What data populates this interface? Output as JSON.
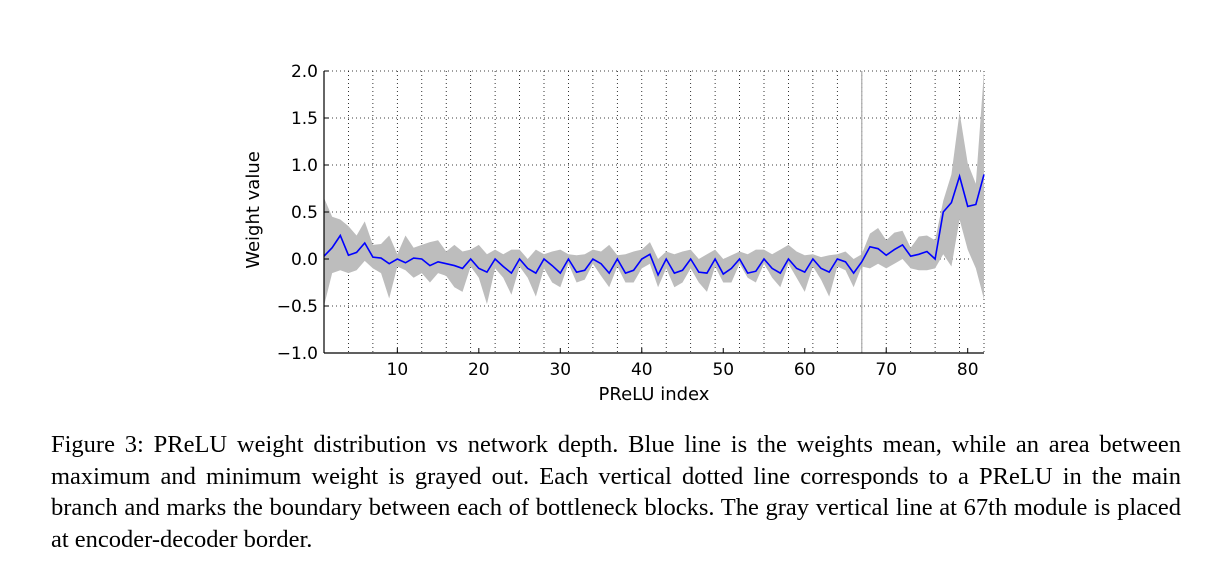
{
  "chart_data": {
    "type": "line",
    "title": "",
    "xlabel": "PReLU index",
    "ylabel": "Weight value",
    "xlim": [
      1,
      82
    ],
    "ylim": [
      -1.0,
      2.0
    ],
    "xticks": [
      10,
      20,
      30,
      40,
      50,
      60,
      70,
      80
    ],
    "yticks": [
      -1.0,
      -0.5,
      0.0,
      0.5,
      1.0,
      1.5,
      2.0
    ],
    "ytick_labels": [
      "−1.0",
      "−0.5",
      "0.0",
      "0.5",
      "1.0",
      "1.5",
      "2.0"
    ],
    "grid": "dotted",
    "block_boundaries": [
      1,
      4,
      7,
      10,
      13,
      16,
      19,
      22,
      25,
      28,
      31,
      34,
      37,
      40,
      43,
      46,
      49,
      52,
      55,
      58,
      61,
      64,
      67,
      70,
      73,
      76,
      79,
      82
    ],
    "encoder_decoder_border": 67,
    "colors": {
      "mean": "#0000ff",
      "range": "#bdbdbd",
      "border": "#aaaaaa"
    },
    "x": [
      1,
      2,
      3,
      4,
      5,
      6,
      7,
      8,
      9,
      10,
      11,
      12,
      13,
      14,
      15,
      16,
      17,
      18,
      19,
      20,
      21,
      22,
      23,
      24,
      25,
      26,
      27,
      28,
      29,
      30,
      31,
      32,
      33,
      34,
      35,
      36,
      37,
      38,
      39,
      40,
      41,
      42,
      43,
      44,
      45,
      46,
      47,
      48,
      49,
      50,
      51,
      52,
      53,
      54,
      55,
      56,
      57,
      58,
      59,
      60,
      61,
      62,
      63,
      64,
      65,
      66,
      67,
      68,
      69,
      70,
      71,
      72,
      73,
      74,
      75,
      76,
      77,
      78,
      79,
      80,
      81,
      82
    ],
    "series": [
      {
        "name": "",
        "role": "mean",
        "values": [
          0.03,
          0.12,
          0.25,
          0.04,
          0.07,
          0.17,
          0.02,
          0.01,
          -0.05,
          0.0,
          -0.04,
          0.01,
          0.0,
          -0.07,
          -0.03,
          -0.05,
          -0.07,
          -0.1,
          0.0,
          -0.1,
          -0.14,
          0.0,
          -0.08,
          -0.15,
          0.0,
          -0.1,
          -0.15,
          0.0,
          -0.07,
          -0.15,
          0.0,
          -0.14,
          -0.12,
          0.0,
          -0.05,
          -0.15,
          0.0,
          -0.15,
          -0.12,
          0.0,
          0.05,
          -0.17,
          0.0,
          -0.15,
          -0.12,
          0.0,
          -0.14,
          -0.15,
          0.0,
          -0.16,
          -0.1,
          0.0,
          -0.15,
          -0.13,
          0.0,
          -0.1,
          -0.15,
          0.0,
          -0.1,
          -0.14,
          0.0,
          -0.1,
          -0.14,
          0.0,
          -0.03,
          -0.15,
          -0.03,
          0.13,
          0.11,
          0.04,
          0.1,
          0.15,
          0.03,
          0.05,
          0.08,
          0.0,
          0.5,
          0.6,
          0.88,
          0.56,
          0.58,
          0.9
        ]
      },
      {
        "name": "",
        "role": "max",
        "values": [
          0.65,
          0.45,
          0.42,
          0.35,
          0.25,
          0.4,
          0.15,
          0.16,
          0.25,
          0.05,
          0.25,
          0.12,
          0.15,
          0.18,
          0.2,
          0.08,
          0.15,
          0.08,
          0.1,
          0.15,
          0.05,
          0.1,
          0.05,
          0.1,
          0.1,
          0.0,
          0.1,
          0.05,
          0.08,
          0.1,
          0.05,
          0.04,
          0.05,
          0.1,
          0.08,
          0.15,
          0.04,
          0.05,
          0.08,
          0.1,
          0.18,
          0.0,
          0.08,
          0.05,
          0.08,
          0.1,
          0.0,
          0.05,
          0.1,
          0.0,
          0.04,
          0.08,
          0.05,
          0.1,
          0.1,
          0.05,
          0.1,
          0.15,
          0.08,
          0.04,
          0.05,
          0.02,
          0.04,
          0.05,
          0.08,
          0.0,
          0.05,
          0.27,
          0.33,
          0.2,
          0.28,
          0.3,
          0.12,
          0.24,
          0.25,
          0.2,
          0.62,
          0.9,
          1.56,
          1.02,
          0.8,
          2.0
        ]
      },
      {
        "name": "",
        "role": "min",
        "values": [
          -0.5,
          -0.15,
          -0.12,
          -0.15,
          -0.12,
          -0.02,
          -0.1,
          -0.15,
          -0.42,
          -0.08,
          -0.12,
          -0.2,
          -0.15,
          -0.25,
          -0.15,
          -0.18,
          -0.3,
          -0.35,
          -0.08,
          -0.2,
          -0.48,
          -0.1,
          -0.2,
          -0.38,
          -0.08,
          -0.2,
          -0.4,
          -0.1,
          -0.25,
          -0.3,
          -0.05,
          -0.25,
          -0.22,
          -0.05,
          -0.18,
          -0.3,
          -0.08,
          -0.25,
          -0.25,
          -0.1,
          -0.05,
          -0.3,
          -0.1,
          -0.3,
          -0.25,
          -0.1,
          -0.25,
          -0.35,
          -0.08,
          -0.25,
          -0.25,
          -0.05,
          -0.2,
          -0.25,
          -0.05,
          -0.2,
          -0.3,
          -0.05,
          -0.2,
          -0.35,
          -0.08,
          -0.22,
          -0.4,
          -0.08,
          -0.12,
          -0.3,
          -0.08,
          -0.1,
          -0.05,
          -0.1,
          -0.05,
          0.0,
          -0.1,
          -0.12,
          -0.12,
          -0.1,
          0.05,
          -0.08,
          0.42,
          0.1,
          -0.1,
          -0.43
        ]
      }
    ]
  },
  "caption": "Figure 3: PReLU weight distribution vs network depth. Blue line is the weights mean, while an area between maximum and minimum weight is grayed out. Each vertical dotted line corresponds to a PReLU in the main branch and marks the boundary between each of bottleneck blocks. The gray vertical line at 67th module is placed at encoder-decoder border."
}
